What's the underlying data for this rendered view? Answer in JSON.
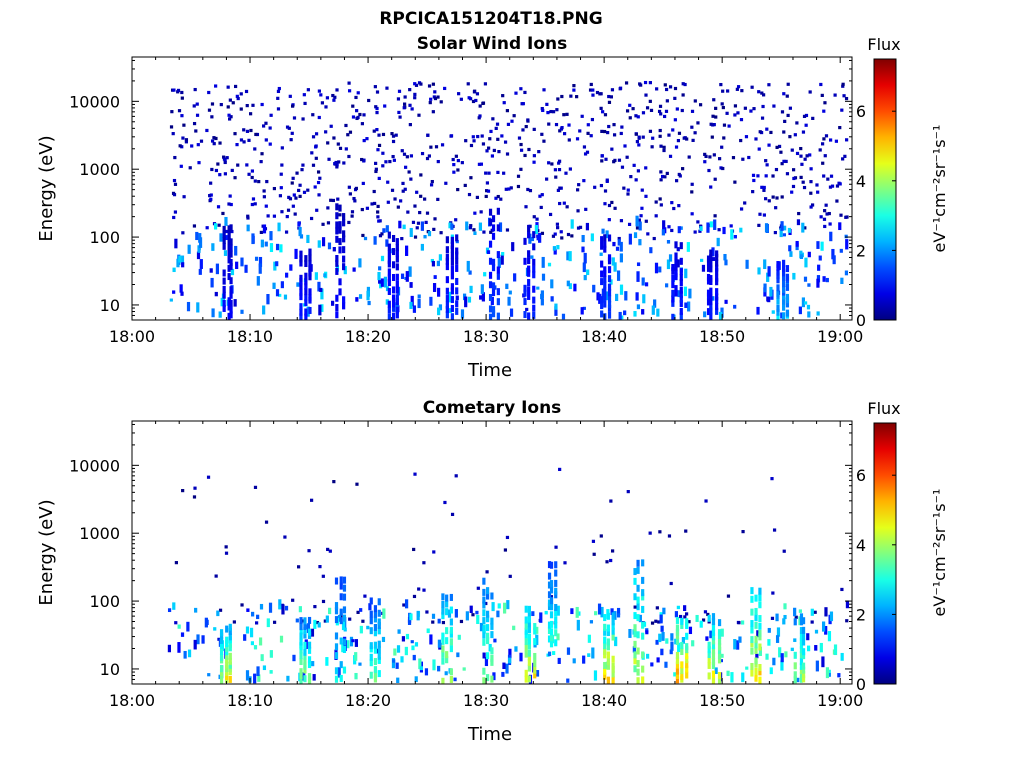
{
  "figure": {
    "title": "RPCICA151204T18.PNG"
  },
  "chart_data": [
    {
      "type": "heatmap",
      "title": "Solar Wind Ions",
      "xlabel": "Time",
      "ylabel": "Energy (eV)",
      "y_scale": "log",
      "x_ticks": [
        "18:00",
        "18:10",
        "18:20",
        "18:30",
        "18:40",
        "18:50",
        "19:00"
      ],
      "y_ticks": [
        "10",
        "100",
        "1000",
        "10000"
      ],
      "ylim": [
        6,
        45000
      ],
      "xlim_minutes": [
        0,
        61
      ],
      "colorbar": {
        "title": "Flux",
        "label": "eV⁻¹cm⁻²sr⁻¹s⁻¹",
        "range": [
          0,
          7.5
        ],
        "ticks": [
          "0",
          "2",
          "4",
          "6"
        ],
        "colormap": "jet"
      },
      "description_of_data": "Sparse scattered low-flux (0–1) points across 100–20000 eV from 18:03 to 19:00, with denser streaks below 100 eV reaching flux ~2–4.",
      "streaks": [
        {
          "t_min": 8.0,
          "e_low": 6,
          "e_high": 150,
          "flux": 1.0
        },
        {
          "t_min": 14.5,
          "e_low": 6,
          "e_high": 60,
          "flux": 1.2
        },
        {
          "t_min": 17.5,
          "e_low": 6,
          "e_high": 300,
          "flux": 1.0
        },
        {
          "t_min": 22.0,
          "e_low": 6,
          "e_high": 120,
          "flux": 1.2
        },
        {
          "t_min": 27.0,
          "e_low": 6,
          "e_high": 100,
          "flux": 1.3
        },
        {
          "t_min": 30.5,
          "e_low": 6,
          "e_high": 250,
          "flux": 1.5
        },
        {
          "t_min": 33.5,
          "e_low": 6,
          "e_high": 150,
          "flux": 1.3
        },
        {
          "t_min": 40.0,
          "e_low": 6,
          "e_high": 100,
          "flux": 1.5
        },
        {
          "t_min": 46.0,
          "e_low": 6,
          "e_high": 80,
          "flux": 1.3
        },
        {
          "t_min": 49.0,
          "e_low": 6,
          "e_high": 60,
          "flux": 1.2
        },
        {
          "t_min": 55.0,
          "e_low": 6,
          "e_high": 40,
          "flux": 2.5
        }
      ],
      "scatter_extent": {
        "t_start": 3,
        "t_end": 60.5,
        "e_low": 100,
        "e_high": 20000,
        "flux": 0.6
      }
    },
    {
      "type": "heatmap",
      "title": "Cometary Ions",
      "xlabel": "Time",
      "ylabel": "Energy (eV)",
      "y_scale": "log",
      "x_ticks": [
        "18:00",
        "18:10",
        "18:20",
        "18:30",
        "18:40",
        "18:50",
        "19:00"
      ],
      "y_ticks": [
        "10",
        "100",
        "1000",
        "10000"
      ],
      "ylim": [
        6,
        45000
      ],
      "xlim_minutes": [
        0,
        61
      ],
      "colorbar": {
        "title": "Flux",
        "label": "eV⁻¹cm⁻²sr⁻¹s⁻¹",
        "range": [
          0,
          7.5
        ],
        "ticks": [
          "0",
          "2",
          "4",
          "6"
        ],
        "colormap": "jet"
      },
      "description_of_data": "Vertical bursts of cometary ions below ~300 eV with peak flux ~5.5 near 10 eV, sparse isolated points up to ~10000 eV.",
      "streaks": [
        {
          "t_min": 7.8,
          "e_low": 6,
          "e_high": 40,
          "flux": 4.8
        },
        {
          "t_min": 14.5,
          "e_low": 6,
          "e_high": 60,
          "flux": 4.0
        },
        {
          "t_min": 17.5,
          "e_low": 6,
          "e_high": 220,
          "flux": 3.0
        },
        {
          "t_min": 20.5,
          "e_low": 6,
          "e_high": 100,
          "flux": 3.5
        },
        {
          "t_min": 26.5,
          "e_low": 6,
          "e_high": 120,
          "flux": 4.5
        },
        {
          "t_min": 30.0,
          "e_low": 6,
          "e_high": 200,
          "flux": 3.8
        },
        {
          "t_min": 33.6,
          "e_low": 6,
          "e_high": 80,
          "flux": 5.0
        },
        {
          "t_min": 35.5,
          "e_low": 20,
          "e_high": 350,
          "flux": 3.2
        },
        {
          "t_min": 40.2,
          "e_low": 6,
          "e_high": 60,
          "flux": 5.2
        },
        {
          "t_min": 42.8,
          "e_low": 6,
          "e_high": 400,
          "flux": 4.5
        },
        {
          "t_min": 46.5,
          "e_low": 6,
          "e_high": 60,
          "flux": 5.5
        },
        {
          "t_min": 49.2,
          "e_low": 6,
          "e_high": 60,
          "flux": 4.8
        },
        {
          "t_min": 52.8,
          "e_low": 6,
          "e_high": 150,
          "flux": 5.0
        },
        {
          "t_min": 56.5,
          "e_low": 6,
          "e_high": 60,
          "flux": 4.0
        }
      ],
      "scatter_extent": {
        "t_start": 3,
        "t_end": 60.5,
        "e_low": 50,
        "e_high": 10000,
        "flux": 0.5
      }
    }
  ]
}
